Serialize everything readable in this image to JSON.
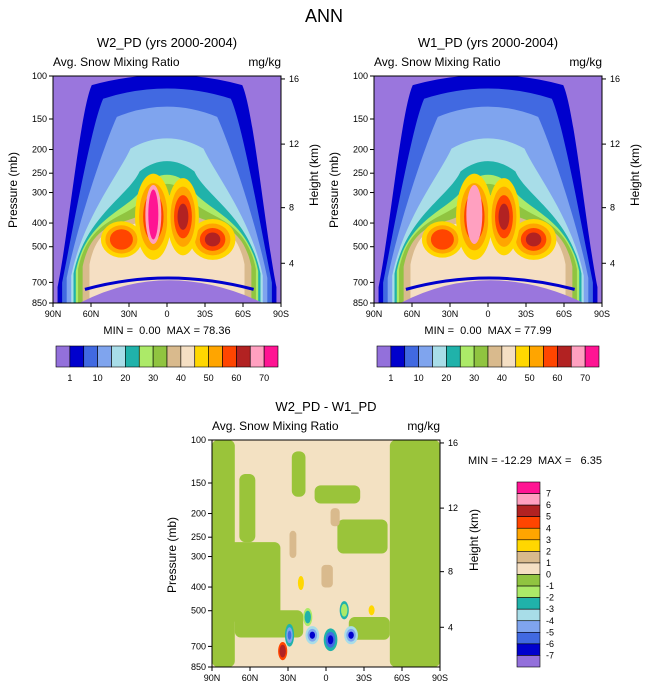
{
  "page": {
    "title": "ANN"
  },
  "colors": {
    "bg_purple": "#9a76dd",
    "bottom_bg": "#f3e1c2",
    "bottom_green": "#9ac43a",
    "palette_top": [
      "#9370db",
      "#0000cd",
      "#4169e1",
      "#7fa4ee",
      "#a8dde8",
      "#20b2aa",
      "#acea68",
      "#90c440",
      "#d9ba8d",
      "#f5dfc3",
      "#ffd700",
      "#ffa500",
      "#ff4500",
      "#b22222",
      "#ffa0c0",
      "#ff1493"
    ],
    "palette_diff": [
      "#9370db",
      "#0000cd",
      "#4169e1",
      "#7fa4ee",
      "#a8dde8",
      "#20b2aa",
      "#acea68",
      "#90c440",
      "#f5dfc3",
      "#d9ba8d",
      "#ffd700",
      "#ffa500",
      "#ff4500",
      "#b22222",
      "#ffa0c0",
      "#ff1493"
    ]
  },
  "chart_data": [
    {
      "type": "heatmap",
      "title": "W2_PD (yrs 2000-2004)",
      "subtitle": "Avg. Snow Mixing Ratio",
      "units": "mg/kg",
      "ylabel": "Pressure (mb)",
      "ylabel_right": "Height (km)",
      "x_ticks": [
        "90N",
        "60N",
        "30N",
        "0",
        "30S",
        "60S",
        "90S"
      ],
      "y_ticks": [
        "100",
        "150",
        "200",
        "250",
        "300",
        "400",
        "500",
        "700",
        "850"
      ],
      "y_ticks_right": [
        "16",
        "12",
        "8",
        "4"
      ],
      "ylim": [
        100,
        850
      ],
      "stats": "MIN =  0.00  MAX = 78.36",
      "min": 0.0,
      "max": 78.36
    },
    {
      "type": "heatmap",
      "title": "W1_PD (yrs 2000-2004)",
      "subtitle": "Avg. Snow Mixing Ratio",
      "units": "mg/kg",
      "ylabel": "Pressure (mb)",
      "ylabel_right": "Height (km)",
      "x_ticks": [
        "90N",
        "60N",
        "30N",
        "0",
        "30S",
        "60S",
        "90S"
      ],
      "y_ticks": [
        "100",
        "150",
        "200",
        "250",
        "300",
        "400",
        "500",
        "700",
        "850"
      ],
      "y_ticks_right": [
        "16",
        "12",
        "8",
        "4"
      ],
      "ylim": [
        100,
        850
      ],
      "stats": "MIN =  0.00  MAX = 77.99",
      "min": 0.0,
      "max": 77.99
    },
    {
      "type": "heatmap",
      "title": "W2_PD - W1_PD",
      "subtitle": "Avg. Snow Mixing Ratio",
      "units": "mg/kg",
      "ylabel": "Pressure (mb)",
      "ylabel_right": "Height (km)",
      "x_ticks": [
        "90N",
        "60N",
        "30N",
        "0",
        "30S",
        "60S",
        "90S"
      ],
      "y_ticks": [
        "100",
        "150",
        "200",
        "250",
        "300",
        "400",
        "500",
        "700",
        "850"
      ],
      "y_ticks_right": [
        "16",
        "12",
        "8",
        "4"
      ],
      "ylim": [
        100,
        850
      ],
      "stats": "MIN = -12.29  MAX =   6.35",
      "min": -12.29,
      "max": 6.35
    }
  ],
  "colorbar_top": {
    "labels": [
      "1",
      "10",
      "20",
      "30",
      "40",
      "50",
      "60",
      "70"
    ]
  },
  "colorbar_diff": {
    "labels": [
      "7",
      "6",
      "5",
      "4",
      "3",
      "2",
      "1",
      "0",
      "-1",
      "-2",
      "-3",
      "-4",
      "-5",
      "-6",
      "-7"
    ]
  }
}
